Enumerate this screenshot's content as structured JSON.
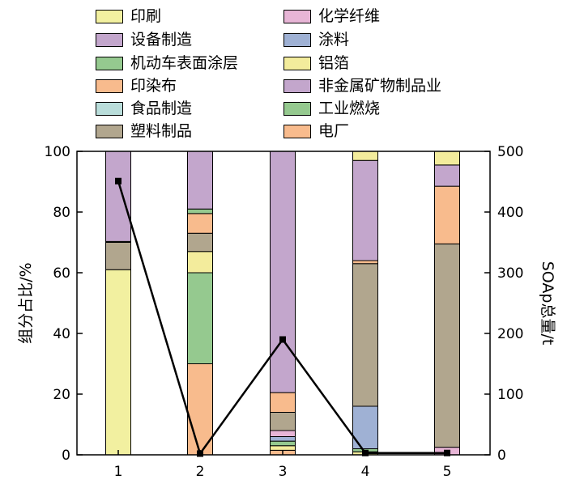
{
  "chart_data": {
    "type": "stacked-bar-with-line",
    "categories": [
      "1",
      "2",
      "3",
      "4",
      "5"
    ],
    "ylabel_left": "组分占比/%",
    "ylabel_right": "SOAp总量/t",
    "ylim_left": [
      0,
      100
    ],
    "ylim_right": [
      0,
      500
    ],
    "yticks_left": [
      "0",
      "20",
      "40",
      "60",
      "80",
      "100"
    ],
    "yticks_right": [
      "0",
      "100",
      "200",
      "300",
      "400",
      "500"
    ],
    "legend": [
      {
        "name": "印刷",
        "color": "#f2f0a0"
      },
      {
        "name": "化学纤维",
        "color": "#e7b5d6"
      },
      {
        "name": "设备制造",
        "color": "#c3a6cc"
      },
      {
        "name": "涂料",
        "color": "#9fb1d4"
      },
      {
        "name": "机动车表面涂层",
        "color": "#95c98f"
      },
      {
        "name": "铝箔",
        "color": "#f3ec9c"
      },
      {
        "name": "印染布",
        "color": "#f8bb8d"
      },
      {
        "name": "非金属矿物制品业",
        "color": "#c3a6cc"
      },
      {
        "name": "食品制造",
        "color": "#b9ddda"
      },
      {
        "name": "工业燃烧",
        "color": "#95c98f"
      },
      {
        "name": "塑料制品",
        "color": "#b1a68e"
      },
      {
        "name": "电厂",
        "color": "#f8bb8d"
      }
    ],
    "stacks": [
      [
        {
          "series": "印刷",
          "value": 61
        },
        {
          "series": "塑料制品",
          "value": 9
        },
        {
          "series": "工业燃烧",
          "value": 0.3
        },
        {
          "series": "非金属矿物制品业",
          "value": 29.7
        }
      ],
      [
        {
          "series": "印染布",
          "value": 30
        },
        {
          "series": "机动车表面涂层",
          "value": 30
        },
        {
          "series": "铝箔",
          "value": 7
        },
        {
          "series": "塑料制品",
          "value": 6
        },
        {
          "series": "电厂",
          "value": 6.5
        },
        {
          "series": "工业燃烧",
          "value": 1.5
        },
        {
          "series": "设备制造",
          "value": 19
        }
      ],
      [
        {
          "series": "电厂",
          "value": 1.5
        },
        {
          "series": "铝箔",
          "value": 1.5
        },
        {
          "series": "机动车表面涂层",
          "value": 1.5
        },
        {
          "series": "涂料",
          "value": 1.5
        },
        {
          "series": "化学纤维",
          "value": 2
        },
        {
          "series": "塑料制品",
          "value": 6
        },
        {
          "series": "电厂",
          "value": 6.5
        },
        {
          "series": "设备制造",
          "value": 79.5
        }
      ],
      [
        {
          "series": "铝箔",
          "value": 1
        },
        {
          "series": "机动车表面涂层",
          "value": 1
        },
        {
          "series": "涂料",
          "value": 14
        },
        {
          "series": "塑料制品",
          "value": 47
        },
        {
          "series": "电厂",
          "value": 1
        },
        {
          "series": "设备制造",
          "value": 33
        },
        {
          "series": "铝箔",
          "value": 3
        }
      ],
      [
        {
          "series": "化学纤维",
          "value": 2.5
        },
        {
          "series": "塑料制品",
          "value": 67
        },
        {
          "series": "电厂",
          "value": 19
        },
        {
          "series": "设备制造",
          "value": 7
        },
        {
          "series": "铝箔",
          "value": 4.5
        }
      ]
    ],
    "line": {
      "axis": "right",
      "color": "#000000",
      "values": [
        451,
        2,
        190,
        3,
        3
      ]
    }
  }
}
